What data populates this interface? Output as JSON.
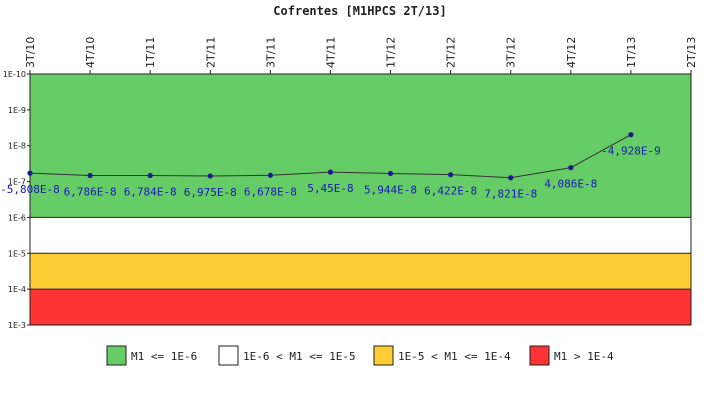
{
  "chart_data": {
    "type": "line",
    "title": "Cofrentes [M1HPCS 2T/13]",
    "x": [
      "3T/10",
      "4T/10",
      "1T/11",
      "2T/11",
      "3T/11",
      "4T/11",
      "1T/12",
      "2T/12",
      "3T/12",
      "4T/12",
      "1T/13",
      "2T/13"
    ],
    "series": [
      {
        "values": [
          -5.808e-08,
          6.786e-08,
          6.784e-08,
          6.975e-08,
          6.678e-08,
          5.45e-08,
          5.944e-08,
          6.422e-08,
          7.821e-08,
          4.086e-08,
          -4.928e-09,
          null
        ],
        "labels": [
          "-5,808E-8",
          "6,786E-8",
          "6,784E-8",
          "6,975E-8",
          "6,678E-8",
          "5,45E-8",
          "5,944E-8",
          "6,422E-8",
          "7,821E-8",
          "4,086E-8",
          "-4,928E-9",
          ""
        ],
        "color": "#1a1a8c"
      }
    ],
    "y_scale": "log",
    "y_axis_reversed": true,
    "ylim": [
      1e-10,
      0.001
    ],
    "y_ticks": [
      {
        "value": 1e-10,
        "label": "1E-10"
      },
      {
        "value": 1e-09,
        "label": "1E-9"
      },
      {
        "value": 1e-08,
        "label": "1E-8"
      },
      {
        "value": 1e-07,
        "label": "1E-7"
      },
      {
        "value": 1e-06,
        "label": "1E-6"
      },
      {
        "value": 1e-05,
        "label": "1E-5"
      },
      {
        "value": 0.0001,
        "label": "1E-4"
      },
      {
        "value": 0.001,
        "label": "1E-3"
      }
    ],
    "bands": [
      {
        "from": 1e-10,
        "to": 1e-06,
        "color": "#66cc66",
        "label": "M1 <= 1E-6"
      },
      {
        "from": 1e-06,
        "to": 1e-05,
        "color": "#ffffff",
        "label": "1E-6 < M1 <= 1E-5"
      },
      {
        "from": 1e-05,
        "to": 0.0001,
        "color": "#ffcc33",
        "label": "1E-5 < M1 <= 1E-4"
      },
      {
        "from": 0.0001,
        "to": 0.001,
        "color": "#ff3333",
        "label": "M1 > 1E-4"
      }
    ],
    "legend_position": "bottom",
    "grid": false
  }
}
